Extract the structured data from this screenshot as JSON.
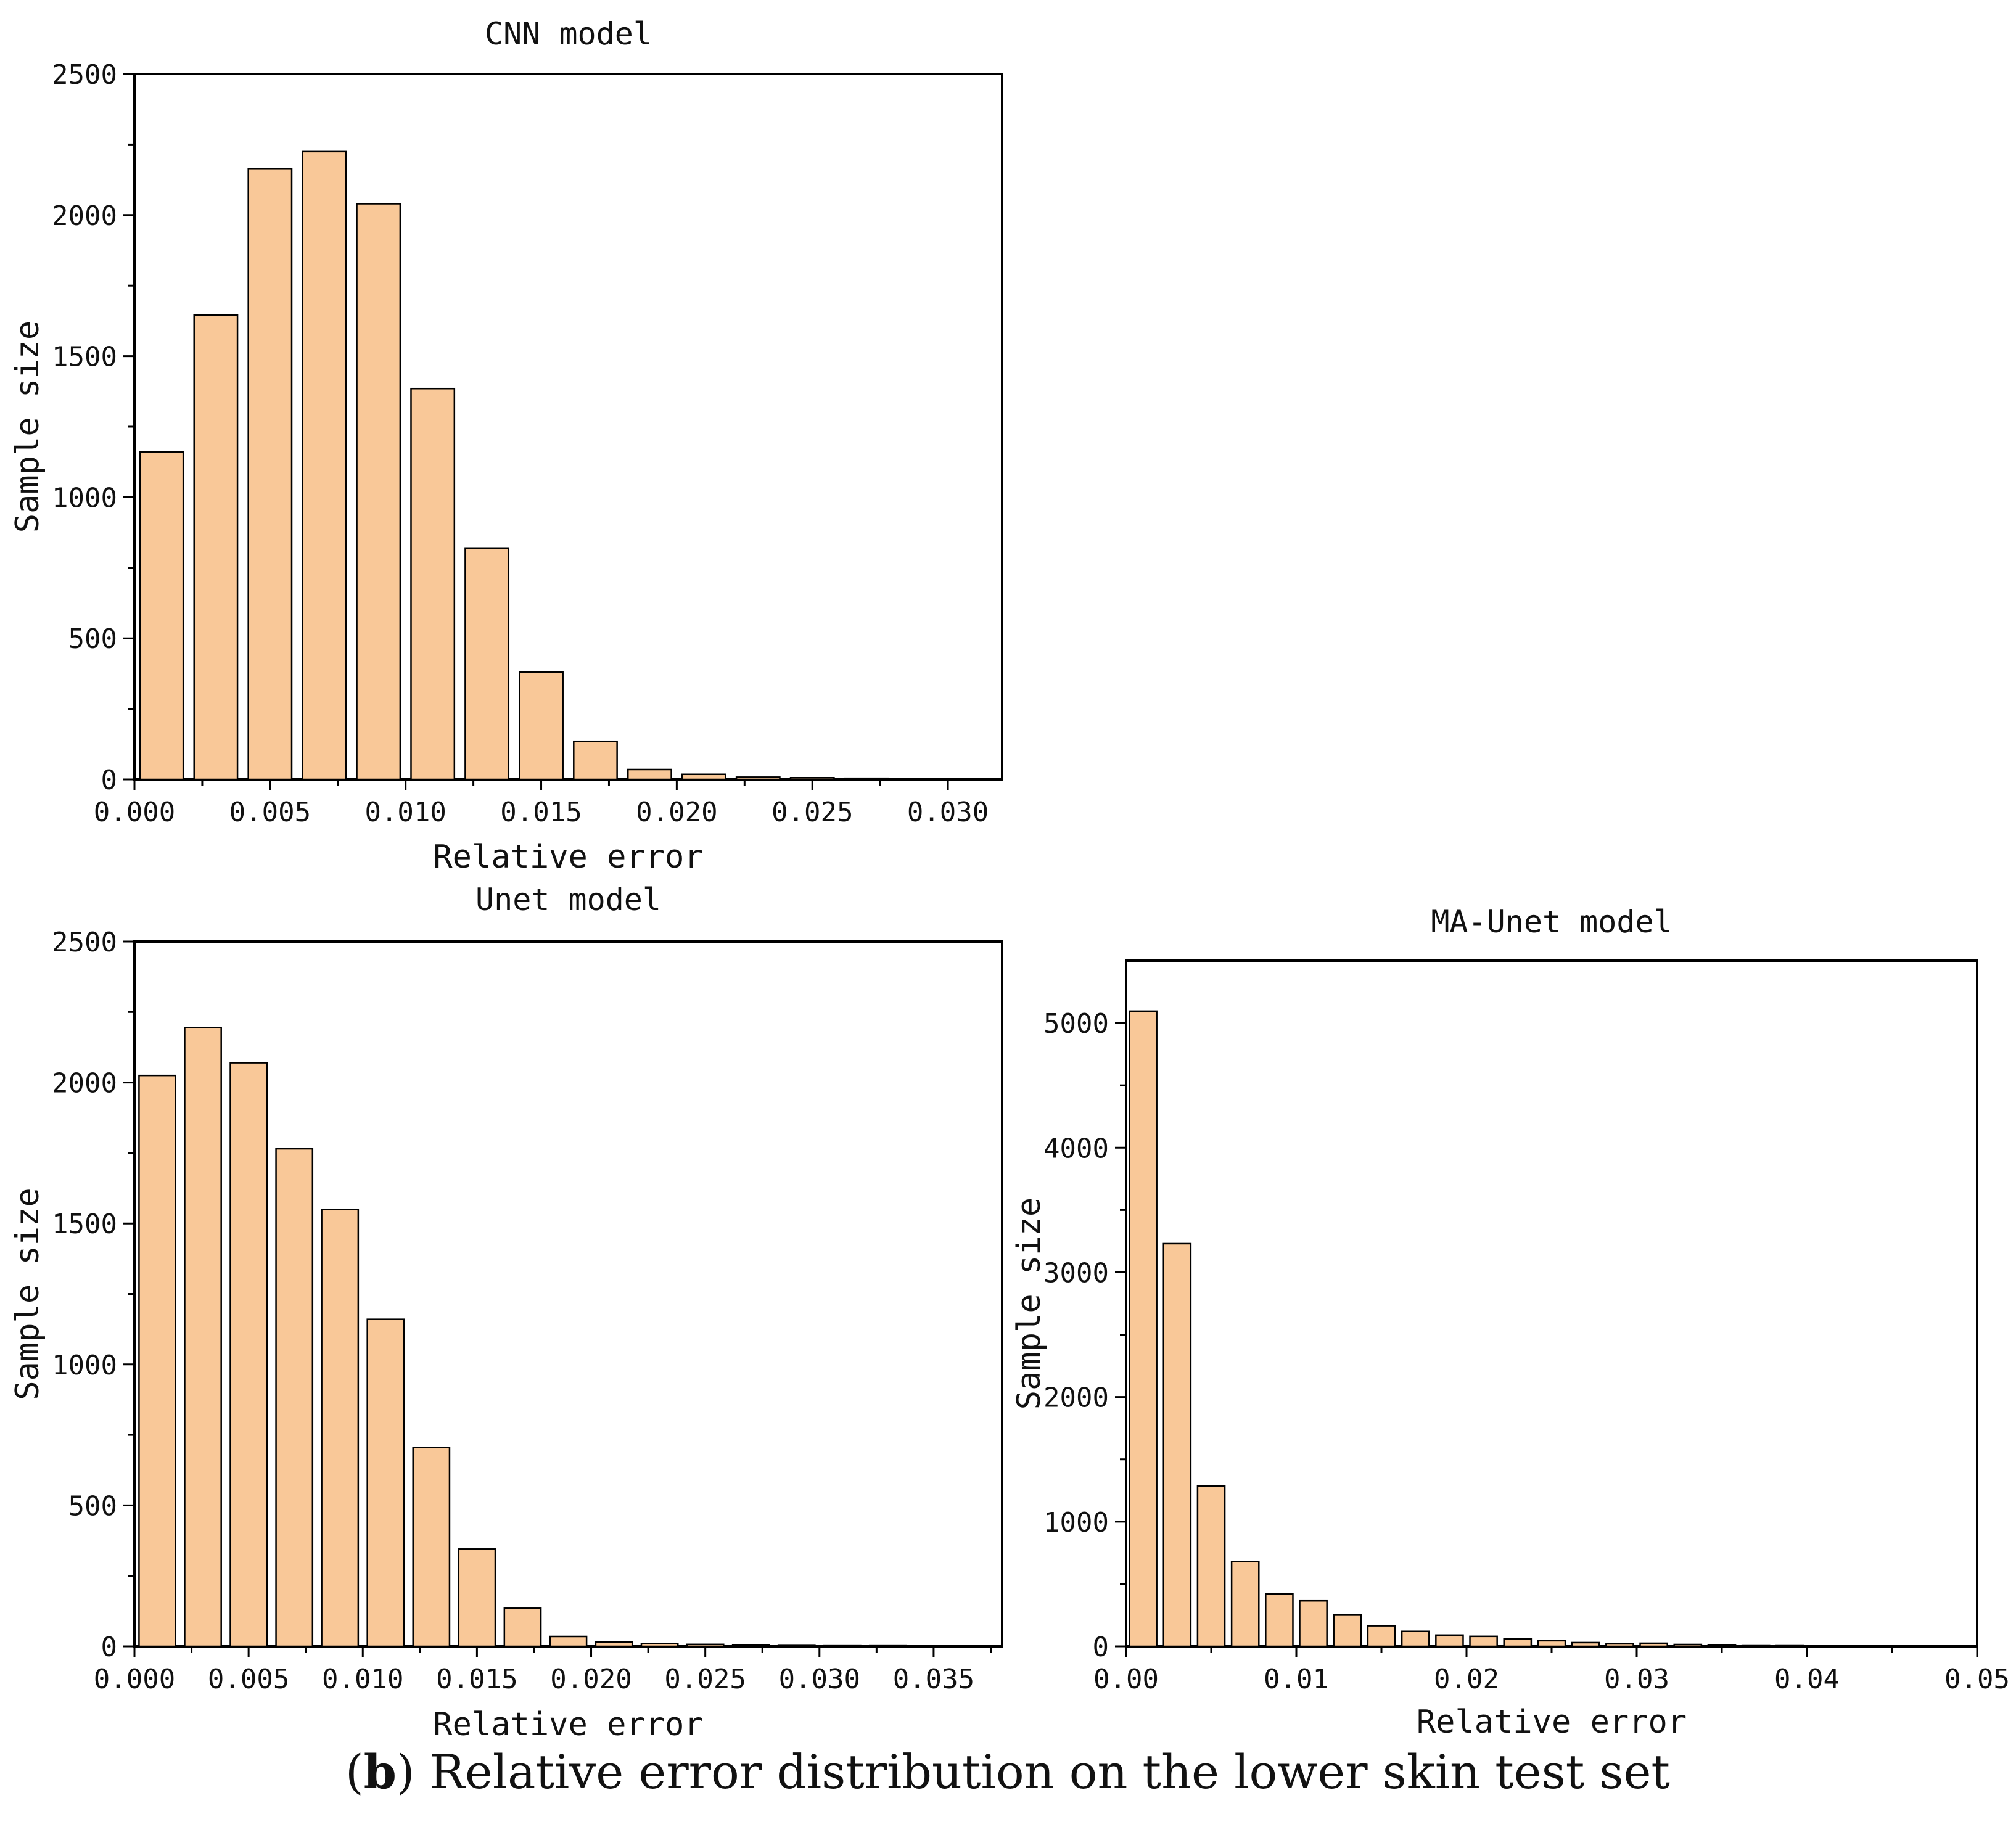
{
  "caption": {
    "letter": "b",
    "text": ") Relative error distribution on the lower skin test set",
    "open_paren": "("
  },
  "colors": {
    "bar_fill": "#f9c898",
    "bar_stroke": "#000000"
  },
  "chart_data": [
    {
      "type": "bar",
      "title": "CNN model",
      "xlabel": "Relative error",
      "ylabel": "Sample size",
      "xlim": [
        0,
        0.032
      ],
      "ylim": [
        0,
        2500
      ],
      "xticks": [
        0.0,
        0.005,
        0.01,
        0.015,
        0.02,
        0.025,
        0.03
      ],
      "xtick_labels": [
        "0.000",
        "0.005",
        "0.010",
        "0.015",
        "0.020",
        "0.025",
        "0.030"
      ],
      "yticks": [
        0,
        500,
        1000,
        1500,
        2000,
        2500
      ],
      "ytick_labels": [
        "0",
        "500",
        "1000",
        "1500",
        "2000",
        "2500"
      ],
      "bin_width": 0.002,
      "bar_fraction": 0.8,
      "bin_centers": [
        0.001,
        0.003,
        0.005,
        0.007,
        0.009,
        0.011,
        0.013,
        0.015,
        0.017,
        0.019,
        0.021,
        0.023,
        0.025,
        0.027,
        0.029,
        0.031
      ],
      "values": [
        1160,
        1645,
        2165,
        2225,
        2040,
        1385,
        820,
        380,
        135,
        35,
        18,
        8,
        6,
        4,
        3,
        2
      ]
    },
    {
      "type": "bar",
      "title": "Unet model",
      "xlabel": "Relative error",
      "ylabel": "Sample size",
      "xlim": [
        0,
        0.038
      ],
      "ylim": [
        0,
        2500
      ],
      "xticks": [
        0.0,
        0.005,
        0.01,
        0.015,
        0.02,
        0.025,
        0.03,
        0.035
      ],
      "xtick_labels": [
        "0.000",
        "0.005",
        "0.010",
        "0.015",
        "0.020",
        "0.025",
        "0.030",
        "0.035"
      ],
      "yticks": [
        0,
        500,
        1000,
        1500,
        2000,
        2500
      ],
      "ytick_labels": [
        "0",
        "500",
        "1000",
        "1500",
        "2000",
        "2500"
      ],
      "bin_width": 0.002,
      "bar_fraction": 0.8,
      "bin_centers": [
        0.001,
        0.003,
        0.005,
        0.007,
        0.009,
        0.011,
        0.013,
        0.015,
        0.017,
        0.019,
        0.021,
        0.023,
        0.025,
        0.027,
        0.029,
        0.031,
        0.033,
        0.035,
        0.037
      ],
      "values": [
        2025,
        2195,
        2070,
        1765,
        1550,
        1160,
        705,
        345,
        135,
        35,
        15,
        10,
        7,
        5,
        3,
        2,
        2,
        1,
        1
      ]
    },
    {
      "type": "bar",
      "title": "MA-Unet model",
      "xlabel": "Relative error",
      "ylabel": "Sample size",
      "xlim": [
        0,
        0.05
      ],
      "ylim": [
        0,
        5500
      ],
      "xticks": [
        0.0,
        0.01,
        0.02,
        0.03,
        0.04,
        0.05
      ],
      "xtick_labels": [
        "0.00",
        "0.01",
        "0.02",
        "0.03",
        "0.04",
        "0.05"
      ],
      "yticks": [
        0,
        1000,
        2000,
        3000,
        4000,
        5000
      ],
      "ytick_labels": [
        "0",
        "1000",
        "2000",
        "3000",
        "4000",
        "5000"
      ],
      "bin_width": 0.002,
      "bar_fraction": 0.8,
      "bin_centers": [
        0.001,
        0.003,
        0.005,
        0.007,
        0.009,
        0.011,
        0.013,
        0.015,
        0.017,
        0.019,
        0.021,
        0.023,
        0.025,
        0.027,
        0.029,
        0.031,
        0.033,
        0.035,
        0.037,
        0.039,
        0.041,
        0.043,
        0.045,
        0.047,
        0.049
      ],
      "values": [
        5095,
        3230,
        1285,
        680,
        420,
        365,
        255,
        165,
        120,
        90,
        80,
        60,
        45,
        30,
        20,
        25,
        15,
        10,
        5,
        5,
        3,
        2,
        2,
        1,
        1
      ]
    }
  ]
}
